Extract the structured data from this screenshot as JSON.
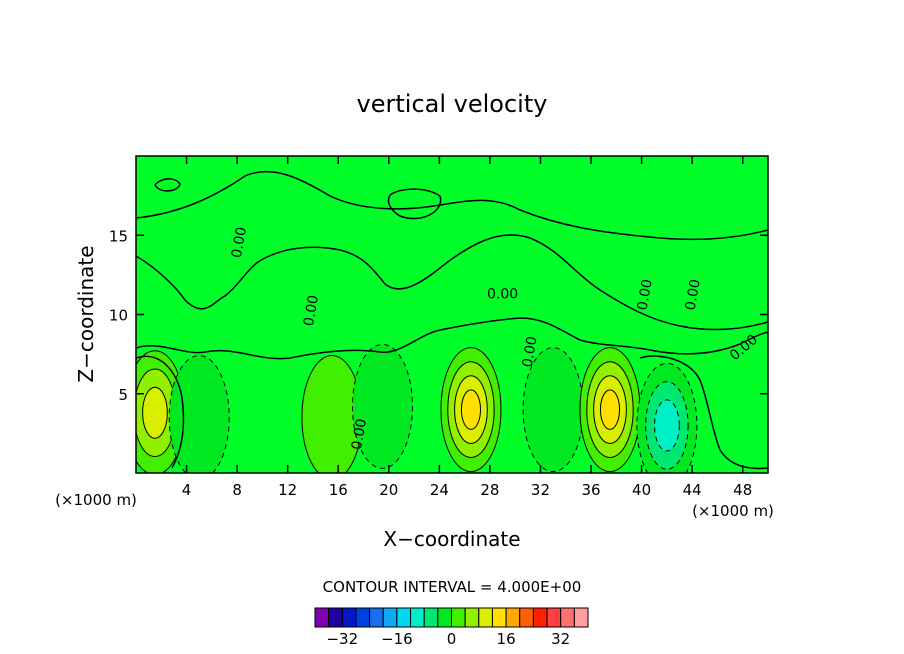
{
  "chart_data": {
    "type": "heatmap",
    "title": "vertical velocity",
    "xlabel": "X−coordinate",
    "ylabel": "Z−coordinate",
    "x_unit_left": "(×1000 m)",
    "x_unit_right": "(×1000 m)",
    "xlim": [
      0,
      50
    ],
    "ylim": [
      0,
      20
    ],
    "x_ticks": [
      4,
      8,
      12,
      16,
      20,
      24,
      28,
      32,
      36,
      40,
      44,
      48
    ],
    "y_ticks": [
      5,
      10,
      15
    ],
    "contour_interval_text": "CONTOUR INTERVAL = 4.000E+00",
    "contour_labels": [
      {
        "text": "0.00",
        "x": 8.5,
        "y": 14.5,
        "rotate": -80
      },
      {
        "text": "0.00",
        "x": 14.2,
        "y": 10.2,
        "rotate": -80
      },
      {
        "text": "0.00",
        "x": 29.0,
        "y": 11.0,
        "rotate": 0
      },
      {
        "text": "0.00",
        "x": 31.5,
        "y": 7.6,
        "rotate": -80
      },
      {
        "text": "0.00",
        "x": 40.6,
        "y": 11.2,
        "rotate": -80
      },
      {
        "text": "0.00",
        "x": 44.4,
        "y": 11.2,
        "rotate": -80
      },
      {
        "text": "0.00",
        "x": 48.3,
        "y": 7.7,
        "rotate": -40
      },
      {
        "text": "0.00",
        "x": 18.0,
        "y": 2.4,
        "rotate": -80
      }
    ],
    "legend": {
      "colors": [
        "#8000b0",
        "#2000a0",
        "#0018c8",
        "#0040e0",
        "#1870f0",
        "#10a8f0",
        "#00d8f0",
        "#00f0c8",
        "#00e870",
        "#00e820",
        "#40f000",
        "#90f000",
        "#d8f000",
        "#ffe000",
        "#ffa800",
        "#ff6000",
        "#ff2000",
        "#ff4040",
        "#ff7070",
        "#ffa0a0"
      ],
      "tick_labels": [
        "−32",
        "−16",
        "0",
        "16",
        "32"
      ],
      "tick_values": [
        -32,
        -16,
        0,
        16,
        32
      ],
      "min": -40,
      "max": 40
    },
    "features": [
      {
        "type": "updraft",
        "x": 1.5,
        "z": 3.8,
        "peak": 12
      },
      {
        "type": "downdraft",
        "x": 5.0,
        "z": 3.5,
        "peak": -6
      },
      {
        "type": "updraft",
        "x": 15.5,
        "z": 3.5,
        "peak": 4
      },
      {
        "type": "downdraft",
        "x": 19.5,
        "z": 4.2,
        "peak": -6
      },
      {
        "type": "updraft",
        "x": 26.5,
        "z": 4.0,
        "peak": 16
      },
      {
        "type": "downdraft",
        "x": 33.0,
        "z": 4.0,
        "peak": -6
      },
      {
        "type": "updraft",
        "x": 37.5,
        "z": 4.0,
        "peak": 16
      },
      {
        "type": "downdraft",
        "x": 42.0,
        "z": 3.0,
        "peak": -14
      }
    ]
  }
}
